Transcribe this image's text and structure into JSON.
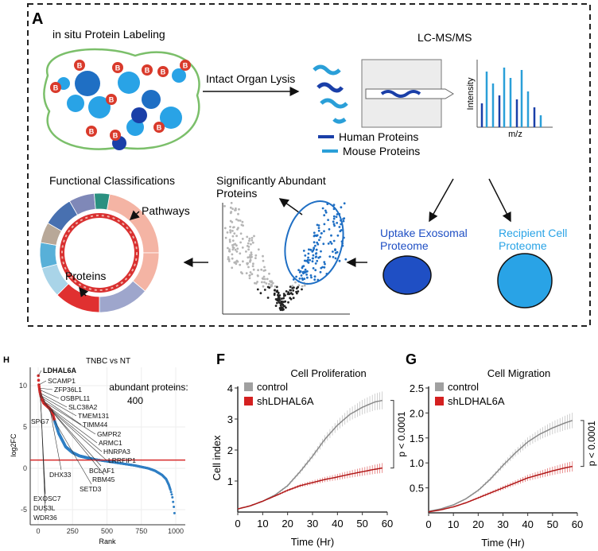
{
  "panel_a": {
    "letter": "A",
    "labeling_title": "in situ Protein Labeling",
    "biotin_badge": "B",
    "lysis_label": "Intact Organ Lysis",
    "lcms_title": "LC-MS/MS",
    "spectrum_ylabel": "Intensity",
    "spectrum_xlabel": "m/z",
    "legend": [
      {
        "label": "Human Proteins",
        "color": "#1a3fa8"
      },
      {
        "label": "Mouse Proteins",
        "color": "#2a9fd8"
      }
    ],
    "uptake_label": [
      "Uptake Exosomal",
      "Proteome"
    ],
    "recipient_label": [
      "Recipient Cell",
      "Proteome"
    ],
    "volcano_title": [
      "Significantly Abundant",
      "Proteins"
    ],
    "functional_title": "Functional Classifications",
    "pathways_label": "Pathways",
    "proteins_label": "Proteins",
    "colors": {
      "dark_blue": "#1f4fc4",
      "light_blue": "#29a3e6",
      "biotin_red": "#d93a2b",
      "blob_outline": "#7bbf6a"
    }
  },
  "chart_data": [
    {
      "panel": "H",
      "type": "scatter",
      "title": "TNBC vs NT",
      "xlabel": "Rank",
      "ylabel": "log2FC",
      "xlim": [
        -20,
        1050
      ],
      "ylim": [
        -6.5,
        11.5
      ],
      "xticks": [
        0,
        250,
        500,
        750,
        1000
      ],
      "yticks": [
        -5,
        0,
        5,
        10
      ],
      "grid": true,
      "annotation": [
        "abundant proteins:",
        "400"
      ],
      "threshold_line": 1,
      "series_color": "#2f7fc4",
      "highlight_color": "#d62a2a",
      "curve": {
        "rank": [
          1,
          5,
          10,
          20,
          40,
          60,
          80,
          100,
          120,
          150,
          200,
          250,
          300,
          400,
          500,
          600,
          700,
          800,
          850,
          900,
          930,
          950,
          965,
          975,
          985,
          990,
          995
        ],
        "log2fc": [
          11.2,
          10.1,
          9.5,
          8.7,
          7.9,
          7.6,
          7.3,
          6.9,
          5.7,
          4.2,
          2.6,
          1.9,
          1.5,
          1.1,
          0.85,
          0.6,
          0.35,
          0.0,
          -0.3,
          -0.8,
          -1.3,
          -2.0,
          -2.8,
          -3.4,
          -4.5,
          -5.3,
          -5.9
        ]
      },
      "labels": [
        {
          "name": "LDHAL6A",
          "rank": 1,
          "log2fc": 11.2,
          "bold": true
        },
        {
          "name": "SCAMP1",
          "rank": 5,
          "log2fc": 10.1
        },
        {
          "name": "ZFP36L1",
          "rank": 8,
          "log2fc": 9.7
        },
        {
          "name": "OSBPL11",
          "rank": 10,
          "log2fc": 9.5
        },
        {
          "name": "SLC38A2",
          "rank": 14,
          "log2fc": 9.1
        },
        {
          "name": "TMEM131",
          "rank": 18,
          "log2fc": 8.8
        },
        {
          "name": "TIMM44",
          "rank": 22,
          "log2fc": 8.6
        },
        {
          "name": "GMPR2",
          "rank": 30,
          "log2fc": 8.2
        },
        {
          "name": "ARMC1",
          "rank": 40,
          "log2fc": 7.9
        },
        {
          "name": "HNRPA3",
          "rank": 80,
          "log2fc": 7.3
        },
        {
          "name": "LRRFIP1",
          "rank": 90,
          "log2fc": 7.1
        },
        {
          "name": "SPG7",
          "rank": 12,
          "log2fc": 9.3
        },
        {
          "name": "BCLAF1",
          "rank": 95,
          "log2fc": 7.0
        },
        {
          "name": "RBM45",
          "rank": 100,
          "log2fc": 6.9
        },
        {
          "name": "SETD3",
          "rank": 120,
          "log2fc": 5.7
        },
        {
          "name": "DHX33",
          "rank": 85,
          "log2fc": 7.2
        },
        {
          "name": "EXOSC7",
          "rank": 15,
          "log2fc": 9.0
        },
        {
          "name": "DUS3L",
          "rank": 16,
          "log2fc": 8.9
        },
        {
          "name": "WDR36",
          "rank": 17,
          "log2fc": 8.8
        }
      ]
    },
    {
      "panel": "F",
      "type": "line",
      "title": "Cell Proliferation",
      "xlabel": "Time (Hr)",
      "ylabel": "Cell index",
      "xlim": [
        0,
        60
      ],
      "ylim": [
        0,
        4
      ],
      "xticks": [
        0,
        10,
        20,
        30,
        40,
        50,
        60
      ],
      "yticks": [
        1,
        2,
        3,
        4
      ],
      "legend_position": "top-left",
      "annotation": "p < 0.0001",
      "x": [
        0,
        5,
        10,
        15,
        20,
        25,
        30,
        35,
        40,
        45,
        50,
        55,
        58
      ],
      "series": [
        {
          "name": "control",
          "color": "#a0a0a0",
          "values": [
            0.1,
            0.2,
            0.35,
            0.55,
            0.85,
            1.3,
            1.8,
            2.35,
            2.8,
            3.15,
            3.38,
            3.55,
            3.6
          ]
        },
        {
          "name": "shLDHAL6A",
          "color": "#d42020",
          "values": [
            0.1,
            0.2,
            0.35,
            0.52,
            0.7,
            0.85,
            0.95,
            1.05,
            1.13,
            1.22,
            1.3,
            1.38,
            1.42
          ]
        }
      ]
    },
    {
      "panel": "G",
      "type": "line",
      "title": "Cell Migration",
      "xlabel": "Time (Hr)",
      "ylabel": "",
      "xlim": [
        0,
        60
      ],
      "ylim": [
        0,
        2.5
      ],
      "xticks": [
        0,
        10,
        20,
        30,
        40,
        50,
        60
      ],
      "yticks": [
        0.5,
        1.0,
        1.5,
        2.0,
        2.5
      ],
      "legend_position": "top-left",
      "annotation": "p < 0.0001",
      "x": [
        0,
        5,
        10,
        15,
        20,
        25,
        30,
        35,
        40,
        45,
        50,
        55,
        58
      ],
      "series": [
        {
          "name": "control",
          "color": "#a0a0a0",
          "values": [
            0.03,
            0.08,
            0.16,
            0.28,
            0.45,
            0.68,
            0.95,
            1.2,
            1.42,
            1.58,
            1.7,
            1.8,
            1.85
          ]
        },
        {
          "name": "shLDHAL6A",
          "color": "#d42020",
          "values": [
            0.02,
            0.06,
            0.12,
            0.2,
            0.3,
            0.4,
            0.5,
            0.6,
            0.7,
            0.77,
            0.84,
            0.9,
            0.93
          ]
        }
      ]
    }
  ]
}
